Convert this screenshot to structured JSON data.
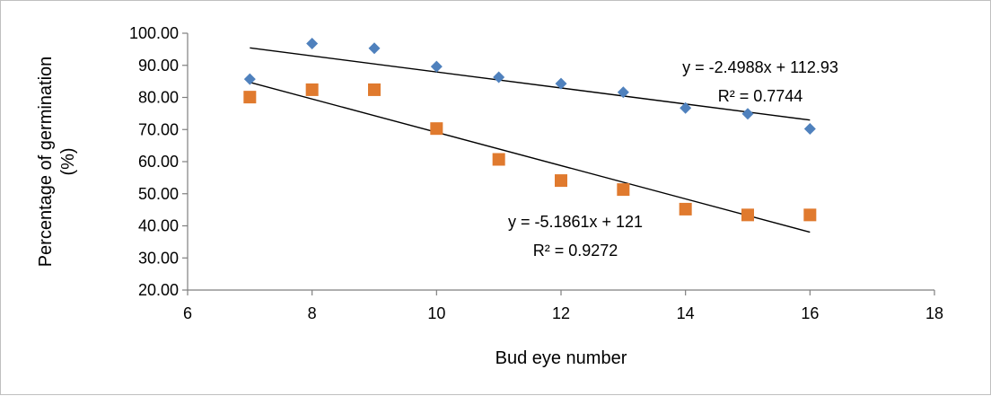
{
  "chart_data": {
    "type": "scatter",
    "xlabel": "Bud eye number",
    "ylabel_lines": [
      "Percentage of germination",
      "(%)"
    ],
    "xlim": [
      6,
      18
    ],
    "ylim": [
      20,
      100
    ],
    "xticks": [
      6,
      8,
      10,
      12,
      14,
      16,
      18
    ],
    "yticks": [
      "20.00",
      "30.00",
      "40.00",
      "50.00",
      "60.00",
      "70.00",
      "80.00",
      "90.00",
      "100.00"
    ],
    "grid": false,
    "legend": "none",
    "series": [
      {
        "marker": "diamond",
        "color": "#4f81bd",
        "x": [
          7,
          8,
          9,
          10,
          11,
          12,
          13,
          14,
          15,
          16
        ],
        "y": [
          85.7,
          96.8,
          95.3,
          89.6,
          86.3,
          84.3,
          81.6,
          76.7,
          74.9,
          70.2
        ],
        "trendline": {
          "slope": -2.4988,
          "intercept": 112.93,
          "x_from": 7,
          "x_to": 16
        },
        "equation": "y = -2.4988x + 112.93",
        "r_squared": "R² = 0.7744"
      },
      {
        "marker": "square",
        "color": "#e07a2e",
        "x": [
          7,
          8,
          9,
          10,
          11,
          12,
          13,
          14,
          15,
          16
        ],
        "y": [
          80.1,
          82.4,
          82.4,
          70.3,
          60.7,
          54.1,
          51.3,
          45.2,
          43.4,
          43.4
        ],
        "trendline": {
          "slope": -5.1861,
          "intercept": 121,
          "x_from": 7,
          "x_to": 16
        },
        "equation": "y = -5.1861x + 121",
        "r_squared": "R² = 0.9272"
      }
    ]
  }
}
